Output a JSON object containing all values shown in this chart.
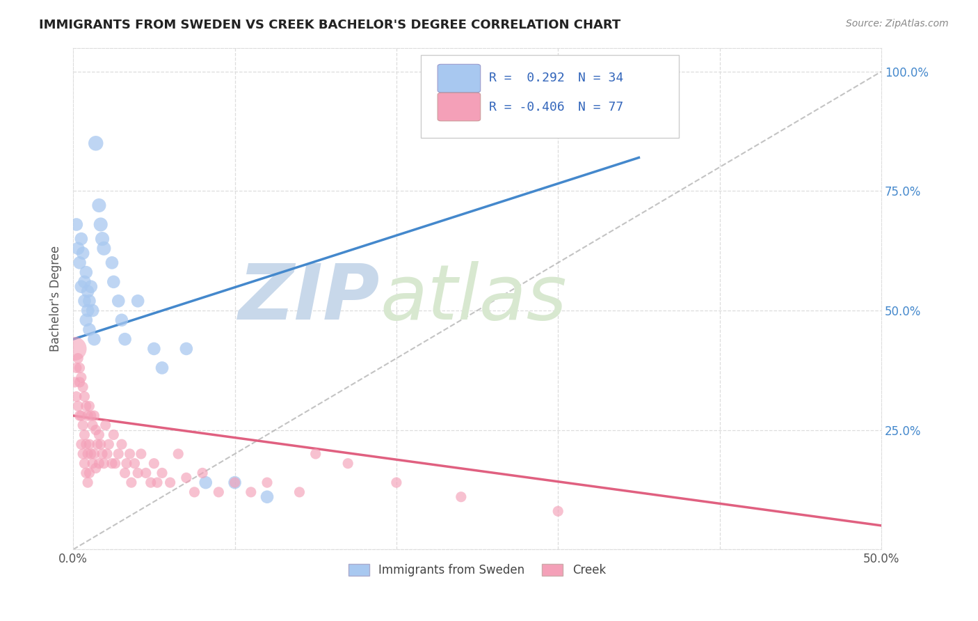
{
  "title": "IMMIGRANTS FROM SWEDEN VS CREEK BACHELOR'S DEGREE CORRELATION CHART",
  "source": "Source: ZipAtlas.com",
  "ylabel": "Bachelor's Degree",
  "ytick_labels": [
    "",
    "25.0%",
    "50.0%",
    "75.0%",
    "100.0%"
  ],
  "legend_label1": "Immigrants from Sweden",
  "legend_label2": "Creek",
  "blue_color": "#a8c8f0",
  "pink_color": "#f4a0b8",
  "blue_line_color": "#4488cc",
  "pink_line_color": "#e06080",
  "dashed_line_color": "#aaaaaa",
  "watermark_zip_color": "#c8d8e8",
  "watermark_atlas_color": "#d8e8d0",
  "blue_scatter": [
    [
      0.002,
      0.68
    ],
    [
      0.003,
      0.63
    ],
    [
      0.004,
      0.6
    ],
    [
      0.005,
      0.55
    ],
    [
      0.005,
      0.65
    ],
    [
      0.006,
      0.62
    ],
    [
      0.007,
      0.56
    ],
    [
      0.007,
      0.52
    ],
    [
      0.008,
      0.58
    ],
    [
      0.008,
      0.48
    ],
    [
      0.009,
      0.54
    ],
    [
      0.009,
      0.5
    ],
    [
      0.01,
      0.52
    ],
    [
      0.01,
      0.46
    ],
    [
      0.011,
      0.55
    ],
    [
      0.012,
      0.5
    ],
    [
      0.013,
      0.44
    ],
    [
      0.014,
      0.85
    ],
    [
      0.016,
      0.72
    ],
    [
      0.017,
      0.68
    ],
    [
      0.018,
      0.65
    ],
    [
      0.019,
      0.63
    ],
    [
      0.024,
      0.6
    ],
    [
      0.025,
      0.56
    ],
    [
      0.028,
      0.52
    ],
    [
      0.03,
      0.48
    ],
    [
      0.032,
      0.44
    ],
    [
      0.04,
      0.52
    ],
    [
      0.05,
      0.42
    ],
    [
      0.055,
      0.38
    ],
    [
      0.07,
      0.42
    ],
    [
      0.082,
      0.14
    ],
    [
      0.1,
      0.14
    ],
    [
      0.12,
      0.11
    ]
  ],
  "blue_sizes": [
    60,
    60,
    60,
    60,
    60,
    60,
    60,
    60,
    60,
    60,
    60,
    60,
    60,
    60,
    60,
    60,
    60,
    80,
    70,
    70,
    70,
    70,
    60,
    60,
    60,
    60,
    60,
    60,
    60,
    60,
    60,
    60,
    60,
    60
  ],
  "pink_scatter": [
    [
      0.001,
      0.42
    ],
    [
      0.001,
      0.35
    ],
    [
      0.002,
      0.38
    ],
    [
      0.002,
      0.32
    ],
    [
      0.003,
      0.4
    ],
    [
      0.003,
      0.3
    ],
    [
      0.004,
      0.38
    ],
    [
      0.004,
      0.28
    ],
    [
      0.004,
      0.35
    ],
    [
      0.005,
      0.36
    ],
    [
      0.005,
      0.28
    ],
    [
      0.005,
      0.22
    ],
    [
      0.006,
      0.34
    ],
    [
      0.006,
      0.26
    ],
    [
      0.006,
      0.2
    ],
    [
      0.007,
      0.32
    ],
    [
      0.007,
      0.24
    ],
    [
      0.007,
      0.18
    ],
    [
      0.008,
      0.3
    ],
    [
      0.008,
      0.22
    ],
    [
      0.008,
      0.16
    ],
    [
      0.009,
      0.28
    ],
    [
      0.009,
      0.2
    ],
    [
      0.009,
      0.14
    ],
    [
      0.01,
      0.3
    ],
    [
      0.01,
      0.22
    ],
    [
      0.01,
      0.16
    ],
    [
      0.011,
      0.28
    ],
    [
      0.011,
      0.2
    ],
    [
      0.012,
      0.26
    ],
    [
      0.012,
      0.18
    ],
    [
      0.013,
      0.28
    ],
    [
      0.013,
      0.2
    ],
    [
      0.014,
      0.25
    ],
    [
      0.014,
      0.17
    ],
    [
      0.015,
      0.22
    ],
    [
      0.016,
      0.24
    ],
    [
      0.016,
      0.18
    ],
    [
      0.017,
      0.22
    ],
    [
      0.018,
      0.2
    ],
    [
      0.019,
      0.18
    ],
    [
      0.02,
      0.26
    ],
    [
      0.021,
      0.2
    ],
    [
      0.022,
      0.22
    ],
    [
      0.024,
      0.18
    ],
    [
      0.025,
      0.24
    ],
    [
      0.026,
      0.18
    ],
    [
      0.028,
      0.2
    ],
    [
      0.03,
      0.22
    ],
    [
      0.032,
      0.16
    ],
    [
      0.033,
      0.18
    ],
    [
      0.035,
      0.2
    ],
    [
      0.036,
      0.14
    ],
    [
      0.038,
      0.18
    ],
    [
      0.04,
      0.16
    ],
    [
      0.042,
      0.2
    ],
    [
      0.045,
      0.16
    ],
    [
      0.048,
      0.14
    ],
    [
      0.05,
      0.18
    ],
    [
      0.052,
      0.14
    ],
    [
      0.055,
      0.16
    ],
    [
      0.06,
      0.14
    ],
    [
      0.065,
      0.2
    ],
    [
      0.07,
      0.15
    ],
    [
      0.075,
      0.12
    ],
    [
      0.08,
      0.16
    ],
    [
      0.09,
      0.12
    ],
    [
      0.1,
      0.14
    ],
    [
      0.11,
      0.12
    ],
    [
      0.12,
      0.14
    ],
    [
      0.14,
      0.12
    ],
    [
      0.15,
      0.2
    ],
    [
      0.17,
      0.18
    ],
    [
      0.2,
      0.14
    ],
    [
      0.24,
      0.11
    ],
    [
      0.3,
      0.08
    ]
  ],
  "pink_sizes_large": [
    [
      0,
      300
    ]
  ],
  "xlim": [
    0.0,
    0.5
  ],
  "ylim": [
    0.0,
    1.05
  ],
  "blue_trend_x": [
    0.0,
    0.35
  ],
  "blue_trend_y": [
    0.44,
    0.82
  ],
  "pink_trend_x": [
    0.0,
    0.5
  ],
  "pink_trend_y": [
    0.28,
    0.05
  ],
  "dashed_trend_x": [
    0.0,
    0.5
  ],
  "dashed_trend_y": [
    0.0,
    1.0
  ]
}
